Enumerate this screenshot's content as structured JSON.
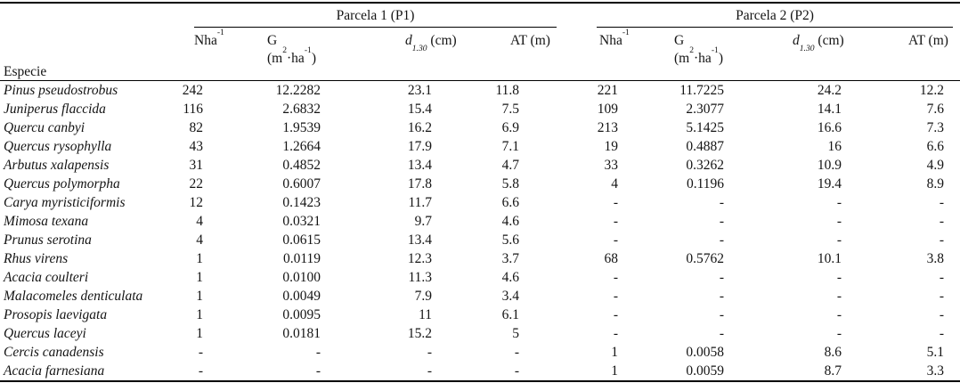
{
  "table": {
    "especie_header": "Especie",
    "groups": [
      {
        "label": "Parcela 1 (P1)"
      },
      {
        "label": "Parcela 2 (P2)"
      }
    ],
    "subcols": {
      "nha": {
        "base": "Nha",
        "sup": "-1"
      },
      "g": {
        "symbol": "G",
        "unit_open": "(m",
        "unit_sup1": "2",
        "unit_mid": "·ha",
        "unit_sup2": "-1",
        "unit_close": ")"
      },
      "d": {
        "symbol": "d",
        "sub": "1.30",
        "unit": " (cm)"
      },
      "at": {
        "label": "AT (m)"
      }
    },
    "colors": {
      "background": "#ffffff",
      "text": "#141414",
      "rule": "#000000"
    }
  },
  "chart_data": {
    "type": "table",
    "title": "",
    "columns": [
      "Especie",
      "P1 Nha-1",
      "P1 G (m2·ha-1)",
      "P1 d1.30 (cm)",
      "P1 AT (m)",
      "P2 Nha-1",
      "P2 G (m2·ha-1)",
      "P2 d1.30 (cm)",
      "P2 AT (m)"
    ]
  },
  "rows": [
    {
      "especie": "Pinus pseudostrobus",
      "p1": [
        "242",
        "12.2282",
        "23.1",
        "11.8"
      ],
      "p2": [
        "221",
        "11.7225",
        "24.2",
        "12.2"
      ]
    },
    {
      "especie": "Juniperus flaccida",
      "p1": [
        "116",
        "2.6832",
        "15.4",
        "7.5"
      ],
      "p2": [
        "109",
        "2.3077",
        "14.1",
        "7.6"
      ]
    },
    {
      "especie": "Quercu canbyi",
      "p1": [
        "82",
        "1.9539",
        "16.2",
        "6.9"
      ],
      "p2": [
        "213",
        "5.1425",
        "16.6",
        "7.3"
      ]
    },
    {
      "especie": "Quercus rysophylla",
      "p1": [
        "43",
        "1.2664",
        "17.9",
        "7.1"
      ],
      "p2": [
        "19",
        "0.4887",
        "16",
        "6.6"
      ]
    },
    {
      "especie": "Arbutus xalapensis",
      "p1": [
        "31",
        "0.4852",
        "13.4",
        "4.7"
      ],
      "p2": [
        "33",
        "0.3262",
        "10.9",
        "4.9"
      ]
    },
    {
      "especie": "Quercus polymorpha",
      "p1": [
        "22",
        "0.6007",
        "17.8",
        "5.8"
      ],
      "p2": [
        "4",
        "0.1196",
        "19.4",
        "8.9"
      ]
    },
    {
      "especie": "Carya myristiciformis",
      "p1": [
        "12",
        "0.1423",
        "11.7",
        "6.6"
      ],
      "p2": [
        "-",
        "-",
        "-",
        "-"
      ]
    },
    {
      "especie": "Mimosa texana",
      "p1": [
        "4",
        "0.0321",
        "9.7",
        "4.6"
      ],
      "p2": [
        "-",
        "-",
        "-",
        "-"
      ]
    },
    {
      "especie": "Prunus serotina",
      "p1": [
        "4",
        "0.0615",
        "13.4",
        "5.6"
      ],
      "p2": [
        "-",
        "-",
        "-",
        "-"
      ]
    },
    {
      "especie": "Rhus virens",
      "p1": [
        "1",
        "0.0119",
        "12.3",
        "3.7"
      ],
      "p2": [
        "68",
        "0.5762",
        "10.1",
        "3.8"
      ]
    },
    {
      "especie": "Acacia coulteri",
      "p1": [
        "1",
        "0.0100",
        "11.3",
        "4.6"
      ],
      "p2": [
        "-",
        "-",
        "-",
        "-"
      ]
    },
    {
      "especie": "Malacomeles denticulata",
      "p1": [
        "1",
        "0.0049",
        "7.9",
        "3.4"
      ],
      "p2": [
        "-",
        "-",
        "-",
        "-"
      ]
    },
    {
      "especie": "Prosopis laevigata",
      "p1": [
        "1",
        "0.0095",
        "11",
        "6.1"
      ],
      "p2": [
        "-",
        "-",
        "-",
        "-"
      ]
    },
    {
      "especie": "Quercus laceyi",
      "p1": [
        "1",
        "0.0181",
        "15.2",
        "5"
      ],
      "p2": [
        "-",
        "-",
        "-",
        "-"
      ]
    },
    {
      "especie": "Cercis canadensis",
      "p1": [
        "-",
        "-",
        "-",
        "-"
      ],
      "p2": [
        "1",
        "0.0058",
        "8.6",
        "5.1"
      ]
    },
    {
      "especie": "Acacia farnesiana",
      "p1": [
        "-",
        "-",
        "-",
        "-"
      ],
      "p2": [
        "1",
        "0.0059",
        "8.7",
        "3.3"
      ]
    }
  ]
}
